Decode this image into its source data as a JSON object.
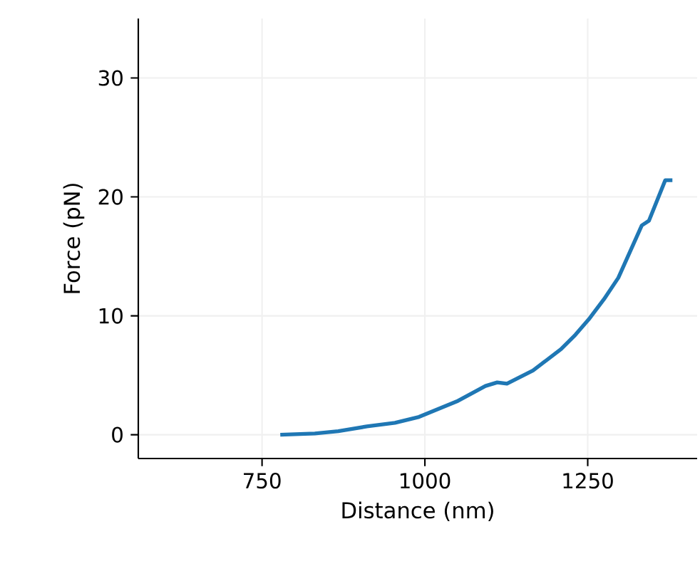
{
  "chart_data": {
    "type": "line",
    "xlabel": "Distance (nm)",
    "ylabel": "Force (pN)",
    "xlim": [
      560,
      1418
    ],
    "ylim": [
      -2,
      35
    ],
    "xticks": [
      750,
      1000,
      1250
    ],
    "yticks": [
      0,
      10,
      20,
      30
    ],
    "grid": true,
    "series": [
      {
        "color": "#1f77b4",
        "x": [
          778,
          831,
          867,
          911,
          954,
          991,
          1049,
          1093,
          1111,
          1126,
          1166,
          1209,
          1231,
          1253,
          1275,
          1297,
          1315,
          1333,
          1344,
          1369,
          1380
        ],
        "values": [
          0,
          0.1,
          0.3,
          0.7,
          1.0,
          1.5,
          2.8,
          4.1,
          4.4,
          4.3,
          5.4,
          7.2,
          8.4,
          9.8,
          11.4,
          13.2,
          15.4,
          17.6,
          18.0,
          21.4,
          21.4
        ]
      }
    ]
  }
}
